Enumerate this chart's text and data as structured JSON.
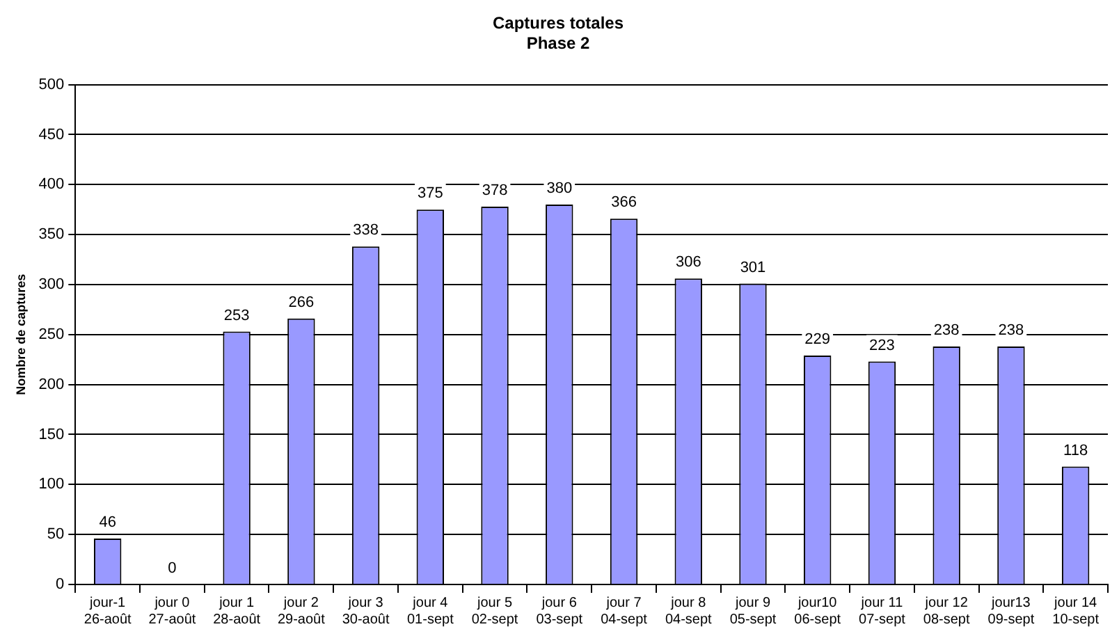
{
  "chart_data": {
    "type": "bar",
    "title": "Captures totales",
    "subtitle": "Phase 2",
    "ylabel": "Nombre de captures",
    "categories": [
      "jour-1\n26-août",
      "jour 0\n27-août",
      "jour 1\n28-août",
      "jour 2\n29-août",
      "jour 3\n30-août",
      "jour 4\n01-sept",
      "jour 5\n02-sept",
      "jour 6\n03-sept",
      "jour 7\n04-sept",
      "jour 8\n04-sept",
      "jour 9\n05-sept",
      "jour10\n06-sept",
      "jour 11\n07-sept",
      "jour 12\n08-sept",
      "jour13\n09-sept",
      "jour 14\n10-sept"
    ],
    "values": [
      46,
      0,
      253,
      266,
      338,
      375,
      378,
      380,
      366,
      306,
      301,
      229,
      223,
      238,
      238,
      118
    ],
    "color": "#9999ff",
    "ylim": [
      0,
      500
    ],
    "yticks": [
      0,
      50,
      100,
      150,
      200,
      250,
      300,
      350,
      400,
      450,
      500
    ],
    "grid": "y",
    "data_labels": true,
    "legend": false
  }
}
